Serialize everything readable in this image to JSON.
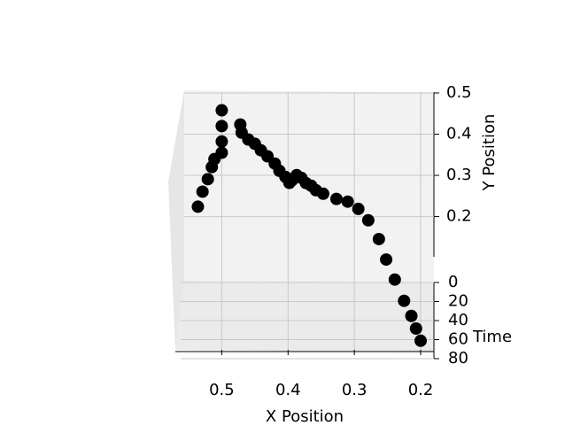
{
  "chart_data": {
    "type": "scatter3d",
    "color": "#000000",
    "xlabel": "X Position",
    "ylabel": "Y Position",
    "zlabel": "Time",
    "x": [
      0.536,
      0.529,
      0.521,
      0.515,
      0.511,
      0.5,
      0.5,
      0.5,
      0.5,
      0.472,
      0.47,
      0.46,
      0.45,
      0.441,
      0.431,
      0.42,
      0.413,
      0.404,
      0.398,
      0.394,
      0.387,
      0.38,
      0.373,
      0.365,
      0.358,
      0.347,
      0.327,
      0.31,
      0.294,
      0.279,
      0.263,
      0.252,
      0.239,
      0.225,
      0.214,
      0.207,
      0.2
    ],
    "y": [
      0.224,
      0.265,
      0.3,
      0.334,
      0.358,
      0.378,
      0.41,
      0.452,
      0.495,
      0.465,
      0.45,
      0.438,
      0.432,
      0.421,
      0.411,
      0.398,
      0.385,
      0.375,
      0.365,
      0.376,
      0.393,
      0.391,
      0.383,
      0.381,
      0.375,
      0.371,
      0.363,
      0.361,
      0.348,
      0.325,
      0.284,
      0.239,
      0.195,
      0.148,
      0.116,
      0.09,
      0.065
    ],
    "z": [
      0,
      2,
      4,
      6,
      8,
      10,
      12,
      14,
      16,
      18,
      20,
      22,
      24,
      26,
      28,
      30,
      32,
      34,
      36,
      38,
      40,
      42,
      44,
      46,
      48,
      50,
      52,
      54,
      56,
      58,
      60,
      62,
      64,
      66,
      68,
      70,
      72
    ],
    "xlim": [
      0.18,
      0.57
    ],
    "ylim": [
      0.04,
      0.5
    ],
    "zlim": [
      0,
      80
    ],
    "xticks": [
      0.5,
      0.4,
      0.3,
      0.2
    ],
    "yticks": [
      0.2,
      0.3,
      0.4,
      0.5
    ],
    "zticks": [
      0,
      20,
      40,
      60,
      80
    ],
    "grid": true
  }
}
